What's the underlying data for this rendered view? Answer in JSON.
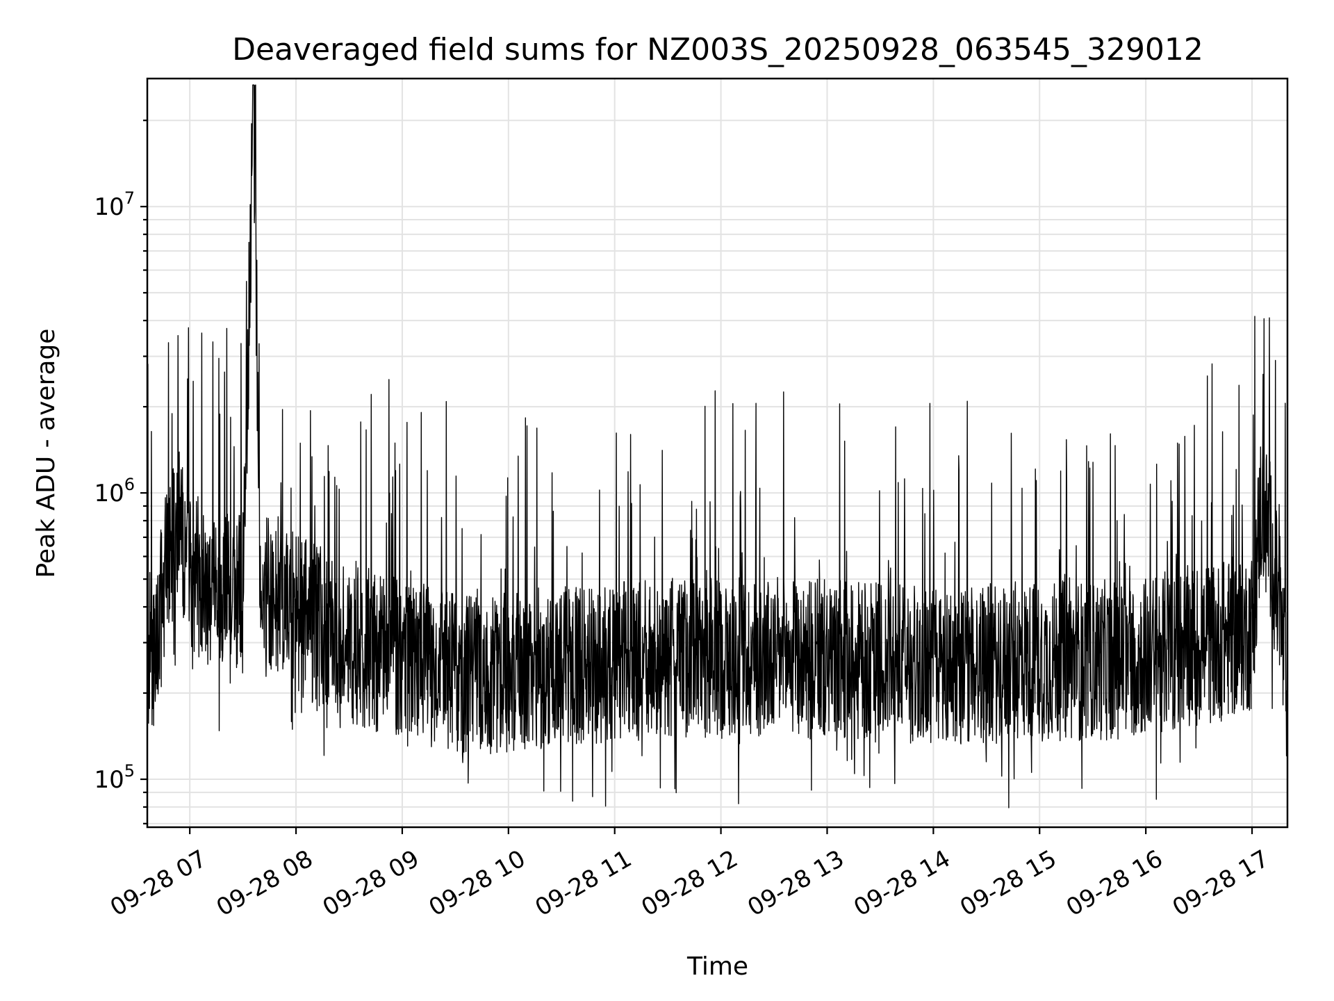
{
  "chart_data": {
    "type": "line",
    "title": "Deaveraged field sums for NZ003S_20250928_063545_329012",
    "xlabel": "Time",
    "ylabel": "Peak ADU - average",
    "yscale": "log",
    "ylim": [
      68000,
      28000000
    ],
    "xlim": [
      "2025-09-28 06:36",
      "2025-09-28 17:20"
    ],
    "x_ticks": [
      "09-28 07",
      "09-28 08",
      "09-28 09",
      "09-28 10",
      "09-28 11",
      "09-28 12",
      "09-28 13",
      "09-28 14",
      "09-28 15",
      "09-28 16",
      "09-28 17"
    ],
    "y_ticks": [
      {
        "value": 100000,
        "base": "10",
        "exp": "5"
      },
      {
        "value": 1000000,
        "base": "10",
        "exp": "6"
      },
      {
        "value": 10000000,
        "base": "10",
        "exp": "7"
      }
    ],
    "grid": true,
    "line_color": "#000000",
    "series": [
      {
        "x": [
          "2025-09-28 06:36",
          "2025-09-28 06:40",
          "2025-09-28 06:48",
          "2025-09-28 06:55",
          "2025-09-28 07:00",
          "2025-09-28 07:10",
          "2025-09-28 07:20",
          "2025-09-28 07:30",
          "2025-09-28 07:36",
          "2025-09-28 07:40",
          "2025-09-28 07:50",
          "2025-09-28 08:00",
          "2025-09-28 08:15",
          "2025-09-28 08:30",
          "2025-09-28 08:45",
          "2025-09-28 09:00",
          "2025-09-28 09:20",
          "2025-09-28 09:40",
          "2025-09-28 10:00",
          "2025-09-28 10:20",
          "2025-09-28 10:40",
          "2025-09-28 11:00",
          "2025-09-28 11:20",
          "2025-09-28 11:40",
          "2025-09-28 12:00",
          "2025-09-28 12:20",
          "2025-09-28 12:40",
          "2025-09-28 13:00",
          "2025-09-28 13:20",
          "2025-09-28 13:40",
          "2025-09-28 14:00",
          "2025-09-28 14:20",
          "2025-09-28 14:40",
          "2025-09-28 15:00",
          "2025-09-28 15:20",
          "2025-09-28 15:40",
          "2025-09-28 16:00",
          "2025-09-28 16:20",
          "2025-09-28 16:40",
          "2025-09-28 17:00",
          "2025-09-28 17:05",
          "2025-09-28 17:10",
          "2025-09-28 17:15",
          "2025-09-28 17:20"
        ],
        "y": [
          300000,
          250000,
          650000,
          750000,
          550000,
          450000,
          450000,
          450000,
          22000000,
          450000,
          420000,
          380000,
          340000,
          300000,
          280000,
          270000,
          240000,
          230000,
          240000,
          245000,
          250000,
          255000,
          260000,
          265000,
          265000,
          265000,
          265000,
          260000,
          255000,
          255000,
          250000,
          250000,
          255000,
          260000,
          260000,
          260000,
          270000,
          290000,
          300000,
          330000,
          900000,
          700000,
          400000,
          200000
        ]
      }
    ]
  }
}
